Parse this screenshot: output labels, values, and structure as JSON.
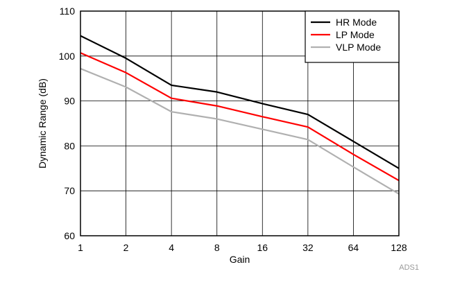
{
  "chart_data": {
    "type": "line",
    "title": "",
    "xlabel": "Gain",
    "ylabel": "Dynamic Range (dB)",
    "x": [
      1,
      2,
      4,
      8,
      16,
      32,
      64,
      128
    ],
    "x_tick_labels": [
      "1",
      "2",
      "4",
      "8",
      "16",
      "32",
      "64",
      "128"
    ],
    "x_scale": "log2",
    "y_ticks": [
      60,
      70,
      80,
      90,
      100,
      110
    ],
    "y_tick_labels": [
      "60",
      "70",
      "80",
      "90",
      "100",
      "110"
    ],
    "ylim": [
      60,
      110
    ],
    "grid": true,
    "legend_position": "top-right",
    "series": [
      {
        "name": "HR Mode",
        "color": "#000000",
        "values": [
          104.5,
          99.5,
          93.5,
          92.0,
          89.4,
          87.0,
          81.0,
          75.0
        ]
      },
      {
        "name": "LP Mode",
        "color": "#ff0000",
        "values": [
          100.7,
          96.3,
          90.6,
          88.9,
          86.5,
          84.2,
          78.1,
          72.3
        ]
      },
      {
        "name": "VLP Mode",
        "color": "#b0b0b0",
        "values": [
          97.2,
          93.1,
          87.6,
          86.0,
          83.7,
          81.4,
          75.3,
          69.3
        ]
      }
    ],
    "figure_id": "ADS1"
  }
}
